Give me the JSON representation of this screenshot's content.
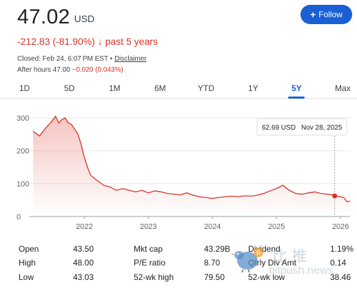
{
  "quote": {
    "price": "47.02",
    "currency": "USD",
    "change": "-212.83 (-81.90%)",
    "change_arrow": "↓",
    "period": "past 5 years",
    "closed": "Closed: Feb 24, 6:07 PM EST •",
    "disclaimer": "Disclaimer",
    "after_hours_label": "After hours 47.00",
    "after_hours_change": "−0.020 (0.043%)"
  },
  "follow_button": {
    "icon": "plus-icon",
    "label": "Follow"
  },
  "tabs": [
    {
      "label": "1D"
    },
    {
      "label": "5D"
    },
    {
      "label": "1M"
    },
    {
      "label": "6M"
    },
    {
      "label": "YTD"
    },
    {
      "label": "1Y"
    },
    {
      "label": "5Y",
      "active": true
    },
    {
      "label": "Max"
    }
  ],
  "tooltip": {
    "value": "62.69 USD",
    "date": "Nov 28, 2025"
  },
  "colors": {
    "line": "#d93025",
    "accent": "#1a5fd3"
  },
  "chart_data": {
    "type": "area",
    "ylim": [
      0,
      300
    ],
    "yticks": [
      "300",
      "200",
      "100",
      "0"
    ],
    "xticks": [
      "2022",
      "2023",
      "2024",
      "2025",
      "2026"
    ],
    "x": [
      2021.2,
      2021.3,
      2021.4,
      2021.45,
      2021.5,
      2021.55,
      2021.6,
      2021.65,
      2021.7,
      2021.75,
      2021.8,
      2021.85,
      2021.9,
      2021.95,
      2022.0,
      2022.05,
      2022.1,
      2022.2,
      2022.3,
      2022.4,
      2022.5,
      2022.6,
      2022.7,
      2022.8,
      2022.9,
      2023.0,
      2023.1,
      2023.2,
      2023.3,
      2023.4,
      2023.5,
      2023.6,
      2023.7,
      2023.8,
      2023.9,
      2024.0,
      2024.1,
      2024.2,
      2024.3,
      2024.4,
      2024.5,
      2024.6,
      2024.7,
      2024.8,
      2024.9,
      2025.0,
      2025.1,
      2025.2,
      2025.3,
      2025.4,
      2025.5,
      2025.6,
      2025.7,
      2025.8,
      2025.9,
      2025.91,
      2026.0,
      2026.05,
      2026.1,
      2026.15
    ],
    "values": [
      260,
      245,
      270,
      280,
      292,
      305,
      285,
      295,
      300,
      285,
      280,
      265,
      250,
      220,
      180,
      150,
      125,
      110,
      95,
      90,
      80,
      85,
      80,
      75,
      80,
      72,
      78,
      75,
      70,
      68,
      66,
      72,
      65,
      60,
      58,
      55,
      58,
      60,
      62,
      60,
      63,
      62,
      65,
      70,
      78,
      85,
      95,
      80,
      70,
      68,
      72,
      75,
      70,
      68,
      65,
      62.69,
      60,
      58,
      45,
      47.02
    ]
  },
  "stats": [
    {
      "label": "Open",
      "value": "43.50"
    },
    {
      "label": "High",
      "value": "48.00"
    },
    {
      "label": "Low",
      "value": "43.03"
    },
    {
      "label": "Mkt cap",
      "value": "43.29B"
    },
    {
      "label": "P/E ratio",
      "value": "8.70"
    },
    {
      "label": "52-wk high",
      "value": "79.50"
    },
    {
      "label": "Dividend",
      "value": "1.19%"
    },
    {
      "label": "Qtrly Div Amt",
      "value": "0.14"
    },
    {
      "label": "52-wk low",
      "value": "38.46"
    }
  ],
  "watermark": {
    "cn": "比推",
    "en": "bitpush.news"
  }
}
